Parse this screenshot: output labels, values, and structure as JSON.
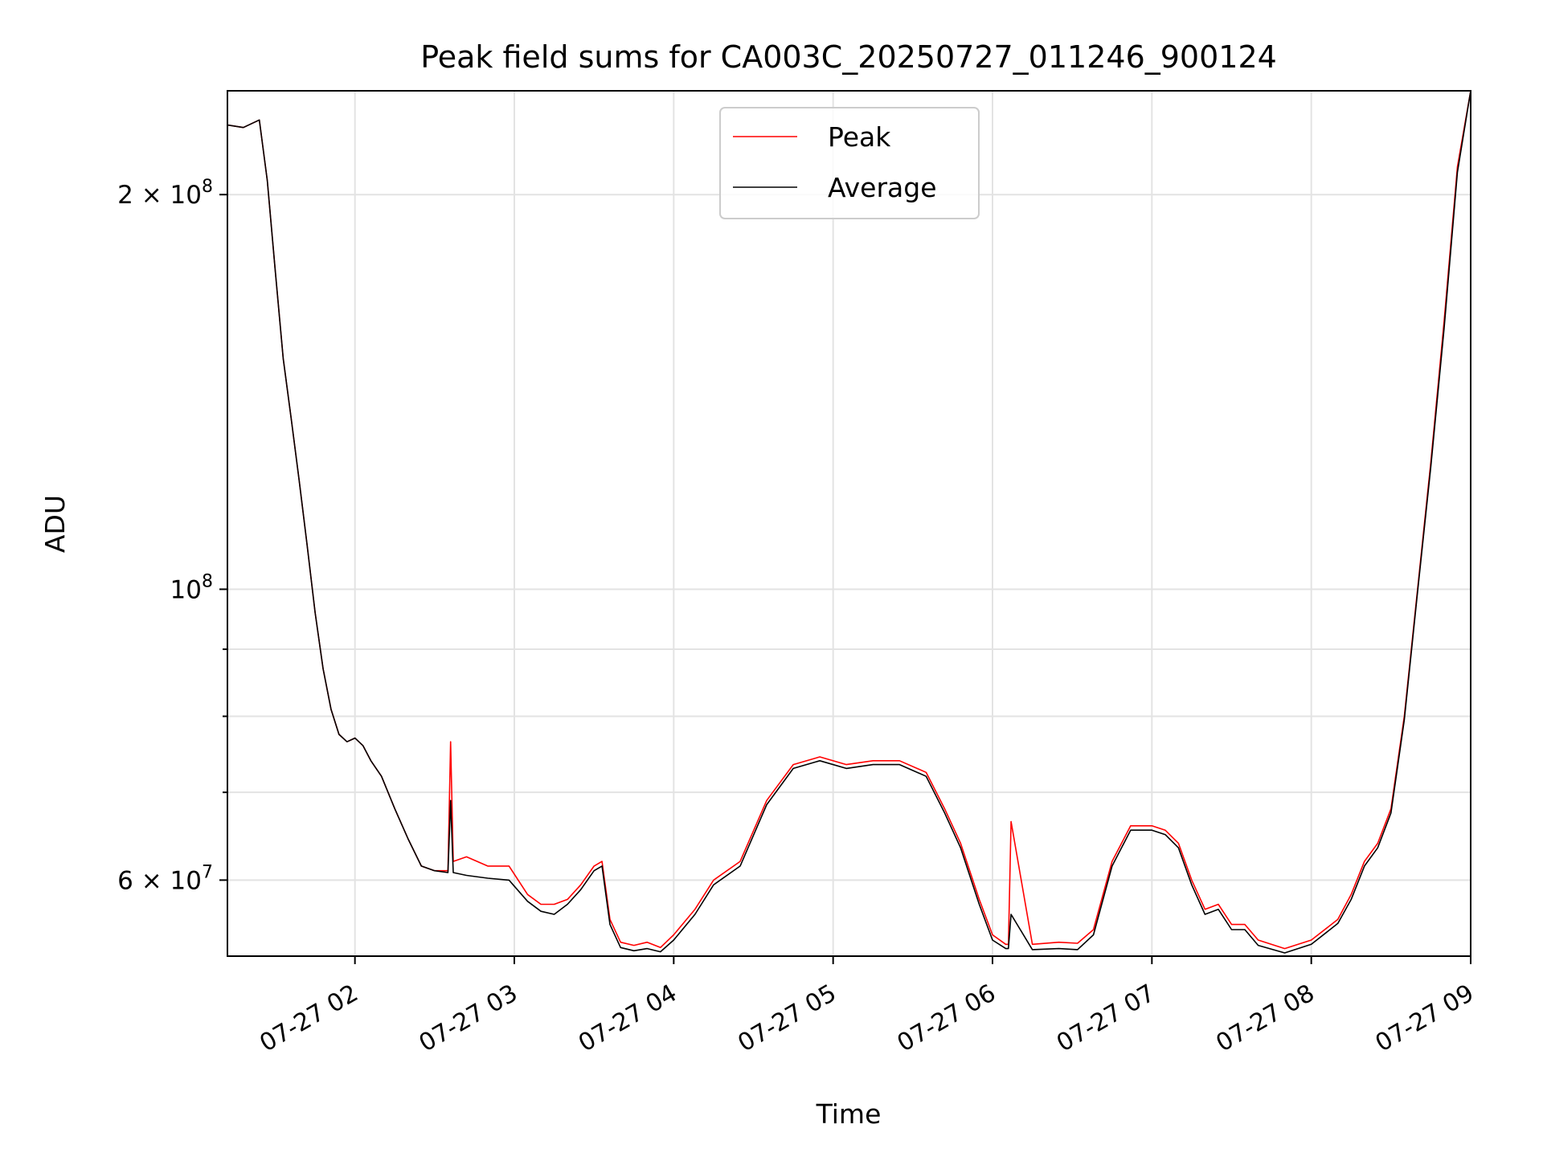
{
  "chart_data": {
    "type": "line",
    "title": "Peak field sums for CA003C_20250727_011246_900124",
    "xlabel": "Time",
    "ylabel": "ADU",
    "yscale": "log",
    "xlim": [
      "2025-07-27 01:12",
      "2025-07-27 09:00"
    ],
    "ylim": [
      52500000,
      240000000
    ],
    "grid": true,
    "legend": "upper center",
    "x_ticks": [
      {
        "value": "2025-07-27 02:00",
        "label": "07-27 02"
      },
      {
        "value": "2025-07-27 03:00",
        "label": "07-27 03"
      },
      {
        "value": "2025-07-27 04:00",
        "label": "07-27 04"
      },
      {
        "value": "2025-07-27 05:00",
        "label": "07-27 05"
      },
      {
        "value": "2025-07-27 06:00",
        "label": "07-27 06"
      },
      {
        "value": "2025-07-27 07:00",
        "label": "07-27 07"
      },
      {
        "value": "2025-07-27 08:00",
        "label": "07-27 08"
      },
      {
        "value": "2025-07-27 09:00",
        "label": "07-27 09"
      }
    ],
    "y_ticks_major": [
      {
        "value": 200000000,
        "label": "2 × 10^8",
        "mant": "2 × 10",
        "exp": "8"
      },
      {
        "value": 100000000,
        "label": "10^8",
        "mant": "10",
        "exp": "8"
      },
      {
        "value": 60000000,
        "label": "6 × 10^7",
        "mant": "6 × 10",
        "exp": "7"
      }
    ],
    "y_ticks_minor": [
      90000000,
      80000000,
      70000000
    ],
    "series": [
      {
        "name": "Peak",
        "color": "#ff0000",
        "x": [
          "2025-07-27 01:12",
          "2025-07-27 01:18",
          "2025-07-27 01:24",
          "2025-07-27 01:27",
          "2025-07-27 01:30",
          "2025-07-27 01:33",
          "2025-07-27 01:36",
          "2025-07-27 01:39",
          "2025-07-27 01:42",
          "2025-07-27 01:45",
          "2025-07-27 01:48",
          "2025-07-27 01:51",
          "2025-07-27 01:54",
          "2025-07-27 01:57",
          "2025-07-27 02:00",
          "2025-07-27 02:03",
          "2025-07-27 02:06",
          "2025-07-27 02:10",
          "2025-07-27 02:15",
          "2025-07-27 02:20",
          "2025-07-27 02:25",
          "2025-07-27 02:30",
          "2025-07-27 02:35",
          "2025-07-27 02:36",
          "2025-07-27 02:37",
          "2025-07-27 02:42",
          "2025-07-27 02:50",
          "2025-07-27 02:58",
          "2025-07-27 03:05",
          "2025-07-27 03:10",
          "2025-07-27 03:15",
          "2025-07-27 03:20",
          "2025-07-27 03:25",
          "2025-07-27 03:30",
          "2025-07-27 03:33",
          "2025-07-27 03:36",
          "2025-07-27 03:40",
          "2025-07-27 03:45",
          "2025-07-27 03:50",
          "2025-07-27 03:55",
          "2025-07-27 04:00",
          "2025-07-27 04:08",
          "2025-07-27 04:15",
          "2025-07-27 04:25",
          "2025-07-27 04:35",
          "2025-07-27 04:45",
          "2025-07-27 04:55",
          "2025-07-27 05:05",
          "2025-07-27 05:15",
          "2025-07-27 05:25",
          "2025-07-27 05:35",
          "2025-07-27 05:42",
          "2025-07-27 05:48",
          "2025-07-27 05:55",
          "2025-07-27 06:00",
          "2025-07-27 06:05",
          "2025-07-27 06:06",
          "2025-07-27 06:07",
          "2025-07-27 06:15",
          "2025-07-27 06:25",
          "2025-07-27 06:32",
          "2025-07-27 06:38",
          "2025-07-27 06:45",
          "2025-07-27 06:52",
          "2025-07-27 07:00",
          "2025-07-27 07:05",
          "2025-07-27 07:10",
          "2025-07-27 07:15",
          "2025-07-27 07:20",
          "2025-07-27 07:25",
          "2025-07-27 07:30",
          "2025-07-27 07:35",
          "2025-07-27 07:40",
          "2025-07-27 07:50",
          "2025-07-27 08:00",
          "2025-07-27 08:10",
          "2025-07-27 08:15",
          "2025-07-27 08:20",
          "2025-07-27 08:25",
          "2025-07-27 08:30",
          "2025-07-27 08:35",
          "2025-07-27 08:40",
          "2025-07-27 08:45",
          "2025-07-27 08:50",
          "2025-07-27 08:55",
          "2025-07-27 09:00"
        ],
        "values": [
          226000000,
          225000000,
          228000000,
          205000000,
          175000000,
          150000000,
          135000000,
          121000000,
          108000000,
          96000000,
          87000000,
          81000000,
          77500000,
          76500000,
          77000000,
          76000000,
          74000000,
          72000000,
          68000000,
          64500000,
          61500000,
          61000000,
          61000000,
          76500000,
          62000000,
          62500000,
          61500000,
          61500000,
          58500000,
          57500000,
          57500000,
          58000000,
          59500000,
          61500000,
          62000000,
          56000000,
          53800000,
          53500000,
          53800000,
          53300000,
          54500000,
          57000000,
          60000000,
          62000000,
          69000000,
          73500000,
          74500000,
          73500000,
          74000000,
          74000000,
          72500000,
          68000000,
          64000000,
          58000000,
          54500000,
          53600000,
          53600000,
          66500000,
          53600000,
          53800000,
          53700000,
          55000000,
          62000000,
          66000000,
          66000000,
          65500000,
          64000000,
          60000000,
          57000000,
          57500000,
          55500000,
          55500000,
          54000000,
          53200000,
          54000000,
          56000000,
          58500000,
          62000000,
          64000000,
          68000000,
          80000000,
          100000000,
          125000000,
          160000000,
          210000000,
          240000000
        ]
      },
      {
        "name": "Average",
        "color": "#000000",
        "x": [
          "2025-07-27 01:12",
          "2025-07-27 01:18",
          "2025-07-27 01:24",
          "2025-07-27 01:27",
          "2025-07-27 01:30",
          "2025-07-27 01:33",
          "2025-07-27 01:36",
          "2025-07-27 01:39",
          "2025-07-27 01:42",
          "2025-07-27 01:45",
          "2025-07-27 01:48",
          "2025-07-27 01:51",
          "2025-07-27 01:54",
          "2025-07-27 01:57",
          "2025-07-27 02:00",
          "2025-07-27 02:03",
          "2025-07-27 02:06",
          "2025-07-27 02:10",
          "2025-07-27 02:15",
          "2025-07-27 02:20",
          "2025-07-27 02:25",
          "2025-07-27 02:30",
          "2025-07-27 02:35",
          "2025-07-27 02:36",
          "2025-07-27 02:37",
          "2025-07-27 02:42",
          "2025-07-27 02:50",
          "2025-07-27 02:58",
          "2025-07-27 03:05",
          "2025-07-27 03:10",
          "2025-07-27 03:15",
          "2025-07-27 03:20",
          "2025-07-27 03:25",
          "2025-07-27 03:30",
          "2025-07-27 03:33",
          "2025-07-27 03:36",
          "2025-07-27 03:40",
          "2025-07-27 03:45",
          "2025-07-27 03:50",
          "2025-07-27 03:55",
          "2025-07-27 04:00",
          "2025-07-27 04:08",
          "2025-07-27 04:15",
          "2025-07-27 04:25",
          "2025-07-27 04:35",
          "2025-07-27 04:45",
          "2025-07-27 04:55",
          "2025-07-27 05:05",
          "2025-07-27 05:15",
          "2025-07-27 05:25",
          "2025-07-27 05:35",
          "2025-07-27 05:42",
          "2025-07-27 05:48",
          "2025-07-27 05:55",
          "2025-07-27 06:00",
          "2025-07-27 06:05",
          "2025-07-27 06:06",
          "2025-07-27 06:07",
          "2025-07-27 06:15",
          "2025-07-27 06:25",
          "2025-07-27 06:32",
          "2025-07-27 06:38",
          "2025-07-27 06:45",
          "2025-07-27 06:52",
          "2025-07-27 07:00",
          "2025-07-27 07:05",
          "2025-07-27 07:10",
          "2025-07-27 07:15",
          "2025-07-27 07:20",
          "2025-07-27 07:25",
          "2025-07-27 07:30",
          "2025-07-27 07:35",
          "2025-07-27 07:40",
          "2025-07-27 07:50",
          "2025-07-27 08:00",
          "2025-07-27 08:10",
          "2025-07-27 08:15",
          "2025-07-27 08:20",
          "2025-07-27 08:25",
          "2025-07-27 08:30",
          "2025-07-27 08:35",
          "2025-07-27 08:40",
          "2025-07-27 08:45",
          "2025-07-27 08:50",
          "2025-07-27 08:55",
          "2025-07-27 09:00"
        ],
        "values": [
          226000000,
          225000000,
          228000000,
          205000000,
          175000000,
          150000000,
          135000000,
          121000000,
          108000000,
          96000000,
          87000000,
          81000000,
          77500000,
          76500000,
          77000000,
          76000000,
          74000000,
          72000000,
          68000000,
          64500000,
          61500000,
          61000000,
          60800000,
          69000000,
          60800000,
          60500000,
          60200000,
          60000000,
          57800000,
          56800000,
          56500000,
          57500000,
          59000000,
          61000000,
          61500000,
          55500000,
          53300000,
          53000000,
          53200000,
          52900000,
          54000000,
          56500000,
          59500000,
          61500000,
          68500000,
          73000000,
          74000000,
          73000000,
          73500000,
          73500000,
          72000000,
          67500000,
          63500000,
          57500000,
          54000000,
          53200000,
          53200000,
          56500000,
          53100000,
          53200000,
          53100000,
          54500000,
          61500000,
          65500000,
          65500000,
          65000000,
          63500000,
          59500000,
          56500000,
          57000000,
          55000000,
          55000000,
          53500000,
          52800000,
          53600000,
          55600000,
          58000000,
          61500000,
          63500000,
          67500000,
          79500000,
          99500000,
          124000000,
          158000000,
          208000000,
          240000000
        ]
      }
    ]
  }
}
